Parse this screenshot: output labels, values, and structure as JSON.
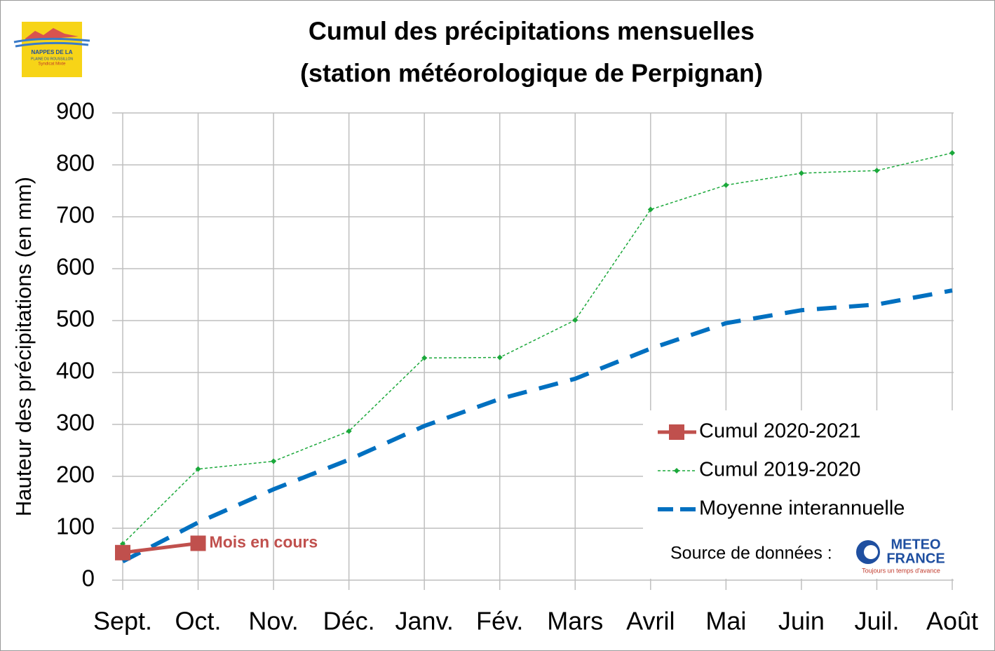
{
  "chart_data": {
    "type": "line",
    "title": [
      "Cumul des précipitations mensuelles",
      "(station météorologique de Perpignan)"
    ],
    "y_label": "Hauteur des précipitations (en mm)",
    "categories": [
      "Sept.",
      "Oct.",
      "Nov.",
      "Déc.",
      "Janv.",
      "Fév.",
      "Mars",
      "Avril",
      "Mai",
      "Juin",
      "Juil.",
      "Août"
    ],
    "series": [
      {
        "name": "Cumul 2020-2021",
        "color": "#c0504d",
        "line_style": "solid",
        "marker": "square",
        "values": [
          53,
          71,
          null,
          null,
          null,
          null,
          null,
          null,
          null,
          null,
          null,
          null
        ]
      },
      {
        "name": "Cumul 2019-2020",
        "color": "#1aa83a",
        "line_style": "dotted",
        "marker": "diamond",
        "values": [
          70,
          214,
          229,
          287,
          428,
          429,
          501,
          714,
          761,
          784,
          789,
          823
        ]
      },
      {
        "name": "Moyenne interannuelle",
        "color": "#0070c0",
        "line_style": "dashed",
        "marker": "none",
        "values": [
          36,
          111,
          175,
          232,
          297,
          349,
          388,
          446,
          495,
          520,
          531,
          558
        ]
      }
    ],
    "ylim": [
      0,
      900
    ],
    "yticks": [
      0,
      100,
      200,
      300,
      400,
      500,
      600,
      700,
      800,
      900
    ],
    "grid": true,
    "annotation": "Mois en cours",
    "source": "Source de données :"
  },
  "logos": {
    "syndicat": [
      "NAPPES DE LA",
      "PLAINE DU ROUSSILLON",
      "Syndicat Mixte"
    ],
    "meteo": [
      "METEO",
      "FRANCE",
      "Toujours un temps d'avance"
    ]
  }
}
